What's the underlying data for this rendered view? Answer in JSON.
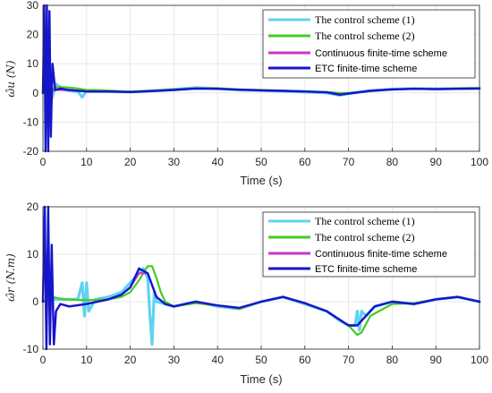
{
  "chart_data": [
    {
      "type": "line",
      "xlabel": "Time (s)",
      "ylabel": "ω̂u (N)",
      "xlim": [
        0,
        100
      ],
      "ylim": [
        -20,
        30
      ],
      "xticks": [
        0,
        10,
        20,
        30,
        40,
        50,
        60,
        70,
        80,
        90,
        100
      ],
      "yticks": [
        -20,
        -10,
        0,
        10,
        20,
        30
      ],
      "grid": true,
      "legend_position": "top-right",
      "series": [
        {
          "name": "The control scheme (1)",
          "color": "#5fd3f3",
          "x": [
            0,
            0.5,
            1,
            1.5,
            2,
            3,
            5,
            8,
            9,
            10,
            12,
            15,
            20,
            25,
            30,
            35,
            40,
            45,
            50,
            55,
            60,
            65,
            68,
            70,
            75,
            80,
            85,
            90,
            95,
            100
          ],
          "y": [
            0,
            5,
            -3,
            4,
            -2,
            3,
            1,
            0.5,
            -1.5,
            0.8,
            0.5,
            0.5,
            0.3,
            0.8,
            1.2,
            1.8,
            1.5,
            1,
            0.8,
            0.6,
            0.3,
            0,
            -0.8,
            -0.2,
            0.8,
            1.3,
            1.5,
            1.4,
            1.5,
            1.6
          ]
        },
        {
          "name": "The control scheme (2)",
          "color": "#44cc22",
          "x": [
            0,
            0.5,
            1,
            1.5,
            2,
            3,
            5,
            8,
            10,
            12,
            15,
            20,
            25,
            30,
            35,
            40,
            45,
            50,
            55,
            60,
            65,
            68,
            70,
            75,
            80,
            85,
            90,
            95,
            100
          ],
          "y": [
            0,
            3,
            1,
            2,
            1,
            2,
            2,
            1.5,
            1,
            1,
            0.8,
            0.5,
            0.8,
            1.2,
            1.6,
            1.6,
            1.2,
            1,
            0.8,
            0.6,
            0.3,
            0,
            0,
            0.6,
            1.2,
            1.4,
            1.4,
            1.6,
            1.7
          ]
        },
        {
          "name": "Continuous finite-time scheme",
          "color": "#cc33cc",
          "x": [
            0,
            0.5,
            1,
            1.5,
            2,
            3,
            5,
            10,
            15,
            20,
            25,
            30,
            35,
            40,
            45,
            50,
            55,
            60,
            65,
            68,
            70,
            75,
            80,
            85,
            90,
            95,
            100
          ],
          "y": [
            0,
            2,
            -1,
            1,
            0.5,
            1,
            1,
            0.5,
            0.5,
            0.3,
            0.6,
            1,
            1.5,
            1.4,
            1.1,
            0.9,
            0.7,
            0.5,
            0.2,
            -0.5,
            -0.2,
            0.7,
            1.2,
            1.4,
            1.3,
            1.4,
            1.5
          ]
        },
        {
          "name": "ETC finite-time scheme",
          "color": "#1515cc",
          "x": [
            0,
            0.3,
            0.6,
            0.9,
            1.2,
            1.5,
            1.8,
            2.2,
            2.8,
            4,
            6,
            10,
            15,
            20,
            25,
            30,
            35,
            40,
            45,
            50,
            55,
            60,
            65,
            68,
            70,
            75,
            80,
            85,
            90,
            95,
            100
          ],
          "y": [
            0,
            30,
            -20,
            30,
            -20,
            28,
            -15,
            10,
            1,
            1.5,
            1,
            0.5,
            0.5,
            0.3,
            0.6,
            1,
            1.5,
            1.4,
            1.1,
            0.9,
            0.7,
            0.5,
            0.2,
            -0.6,
            -0.2,
            0.7,
            1.2,
            1.4,
            1.3,
            1.4,
            1.5
          ]
        }
      ]
    },
    {
      "type": "line",
      "xlabel": "Time (s)",
      "ylabel": "ω̂r (N.m)",
      "xlim": [
        0,
        100
      ],
      "ylim": [
        -10,
        20
      ],
      "xticks": [
        0,
        10,
        20,
        30,
        40,
        50,
        60,
        70,
        80,
        90,
        100
      ],
      "yticks": [
        -10,
        0,
        10,
        20
      ],
      "grid": true,
      "legend_position": "top-right",
      "series": [
        {
          "name": "The control scheme (1)",
          "color": "#5fd3f3",
          "x": [
            0,
            1,
            2,
            4,
            8,
            9,
            9.5,
            10,
            10.5,
            12,
            15,
            18,
            20,
            22,
            23,
            24,
            24.5,
            25,
            25.5,
            26,
            28,
            30,
            35,
            40,
            45,
            50,
            55,
            60,
            65,
            68,
            70,
            71.5,
            72,
            72.5,
            73,
            74,
            76,
            80,
            85,
            90,
            95,
            100
          ],
          "y": [
            0,
            0.5,
            0.5,
            0.5,
            0.5,
            4,
            -3,
            4,
            -2,
            0.5,
            1,
            2,
            4,
            6,
            7,
            5,
            -3,
            -9,
            2,
            0,
            -0.5,
            -1,
            0,
            -1,
            -1.5,
            0,
            1,
            -0.5,
            -2,
            -4,
            -5,
            -5,
            -2,
            -6,
            -2,
            -3,
            -1,
            0,
            -0.5,
            0.5,
            1,
            0
          ]
        },
        {
          "name": "The control scheme (2)",
          "color": "#44cc22",
          "x": [
            0,
            2,
            5,
            10,
            15,
            18,
            20,
            22,
            24,
            25,
            26,
            27,
            28,
            30,
            35,
            40,
            45,
            50,
            55,
            60,
            65,
            70,
            72,
            73,
            75,
            80,
            85,
            90,
            95,
            100
          ],
          "y": [
            0,
            1,
            0.5,
            0.3,
            0.5,
            1,
            2,
            4.5,
            7.5,
            7.5,
            5,
            2,
            0,
            -1,
            -0.3,
            -0.8,
            -1.5,
            0,
            1,
            -0.3,
            -2,
            -5,
            -7,
            -6.5,
            -3,
            -0.5,
            -0.3,
            0.5,
            1,
            0
          ]
        },
        {
          "name": "Continuous finite-time scheme",
          "color": "#cc33cc",
          "x": [
            0,
            0.4,
            0.8,
            1.2,
            1.6,
            2,
            2.5,
            3,
            4,
            6,
            10,
            15,
            18,
            20,
            22,
            24,
            26,
            28,
            30,
            35,
            40,
            45,
            50,
            55,
            60,
            65,
            70,
            72,
            74,
            76,
            80,
            85,
            90,
            95,
            100
          ],
          "y": [
            0,
            18,
            -9,
            15,
            -8,
            10,
            -9,
            -2,
            -0.5,
            -1,
            -0.5,
            0.5,
            1.5,
            3,
            6,
            6,
            1,
            -0.5,
            -1,
            0,
            -0.8,
            -1.3,
            0,
            1,
            -0.3,
            -2,
            -5,
            -5,
            -3,
            -1,
            0,
            -0.5,
            0.5,
            1,
            0
          ]
        },
        {
          "name": "ETC finite-time scheme",
          "color": "#1515cc",
          "x": [
            0,
            0.4,
            0.8,
            1.2,
            1.6,
            2,
            2.5,
            3,
            4,
            6,
            10,
            15,
            18,
            20,
            22,
            24,
            26,
            28,
            30,
            35,
            40,
            45,
            50,
            55,
            60,
            65,
            70,
            72,
            74,
            76,
            80,
            85,
            90,
            95,
            100
          ],
          "y": [
            0,
            20,
            -10,
            20,
            -9,
            12,
            -9,
            -2,
            -0.5,
            -1,
            -0.5,
            0.5,
            1.5,
            3,
            7,
            6,
            1,
            -0.5,
            -1,
            0,
            -0.8,
            -1.3,
            0,
            1,
            -0.3,
            -2,
            -5,
            -5,
            -3,
            -1,
            0,
            -0.5,
            0.5,
            1,
            0
          ]
        }
      ]
    }
  ]
}
